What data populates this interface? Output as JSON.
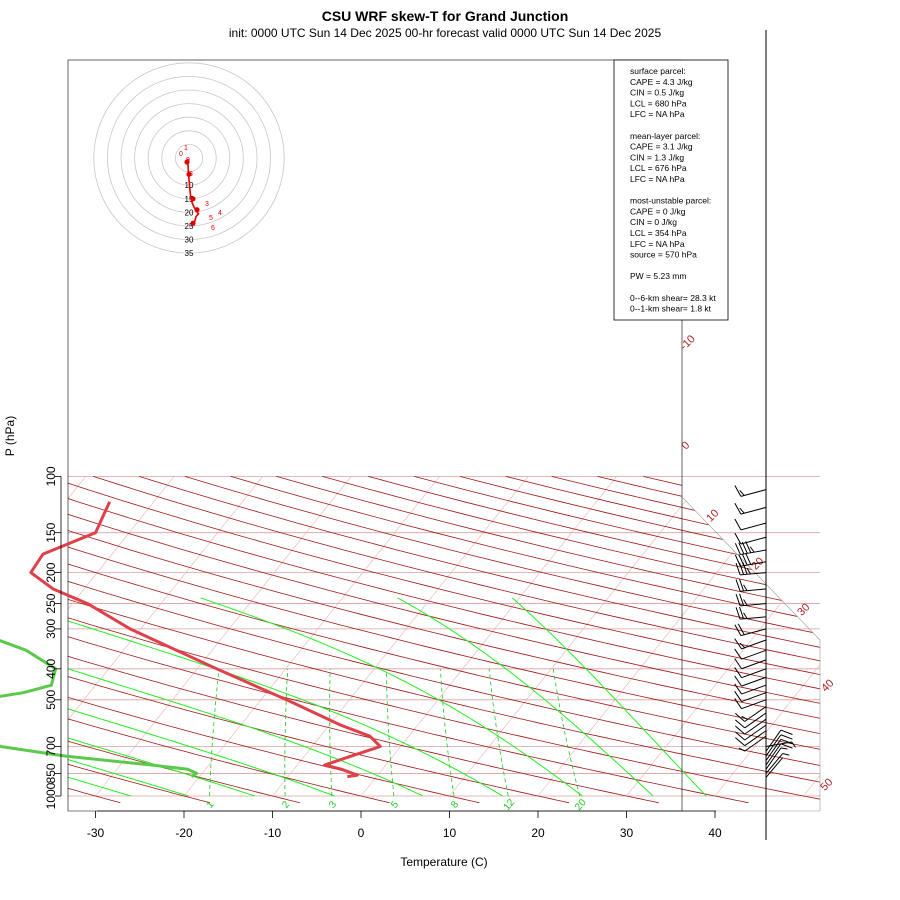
{
  "title": "CSU WRF skew-T for Grand Junction",
  "subtitle": "init: 0000 UTC Sun 14 Dec 2025    00-hr forecast valid 0000 UTC Sun 14 Dec 2025",
  "colors": {
    "temperature": "#e0404a",
    "dewpoint": "#5cc94c",
    "isotherm": "#b22222",
    "isobar": "#d9a0a0",
    "dry_adiabat": "#a01818",
    "moist_adiabat": "#22ee22",
    "mixing_ratio": "#22c522",
    "hodograph": "#e00000"
  },
  "info_box": [
    "surface parcel:",
    "CAPE = 4.3 J/kg",
    "CIN = 0.5 J/kg",
    "LCL = 680 hPa",
    "LFC = NA hPa",
    "",
    "mean-layer parcel:",
    "CAPE = 3.1 J/kg",
    "CIN = 1.3 J/kg",
    "LCL = 676 hPa",
    "LFC = NA hPa",
    "",
    "most-unstable parcel:",
    "CAPE = 0 J/kg",
    "CIN = 0 J/kg",
    "LCL = 354 hPa",
    "LFC = NA hPa",
    "source = 570 hPa",
    "",
    "PW =  5.23 mm",
    "",
    "0--6-km shear= 28.3 kt",
    "0--1-km shear= 1.8 kt"
  ],
  "chart_data": {
    "type": "line",
    "title": "CSU WRF skew-T for Grand Junction",
    "xlabel": "Temperature (C)",
    "ylabel": "P (hPa)",
    "x_ticks": [
      -30,
      -20,
      -10,
      0,
      10,
      20,
      30,
      40
    ],
    "y_ticks": [
      100,
      150,
      200,
      250,
      300,
      400,
      500,
      700,
      850,
      1000
    ],
    "y_scale": "log",
    "isotherm_labels": [
      -10,
      0,
      10,
      20,
      30,
      40,
      50
    ],
    "mixing_ratio_labels": [
      "1",
      "2",
      "3",
      "5",
      "8",
      "12",
      "20"
    ],
    "series": [
      {
        "name": "temperature",
        "points": [
          [
            120,
            -55.0
          ],
          [
            150,
            -53.8
          ],
          [
            175,
            -57.8
          ],
          [
            200,
            -57.5
          ],
          [
            225,
            -53.5
          ],
          [
            250,
            -48.3
          ],
          [
            300,
            -41.2
          ],
          [
            400,
            -27.8
          ],
          [
            500,
            -17.1
          ],
          [
            600,
            -8.7
          ],
          [
            650,
            -4.4
          ],
          [
            700,
            -2.3
          ],
          [
            750,
            -4.7
          ],
          [
            800,
            -6.9
          ],
          [
            825,
            -4.6
          ],
          [
            850,
            -3.0
          ],
          [
            860,
            -2.3
          ],
          [
            870,
            -3.3
          ]
        ]
      },
      {
        "name": "dewpoint",
        "points": [
          [
            190,
            -71.5
          ],
          [
            250,
            -68.0
          ],
          [
            300,
            -59.5
          ],
          [
            350,
            -51.0
          ],
          [
            400,
            -46.0
          ],
          [
            450,
            -45.0
          ],
          [
            475,
            -47.5
          ],
          [
            500,
            -52.0
          ],
          [
            525,
            -62.0
          ],
          [
            550,
            -58.0
          ],
          [
            600,
            -52.0
          ],
          [
            650,
            -48.0
          ],
          [
            700,
            -45.2
          ],
          [
            750,
            -37.0
          ],
          [
            800,
            -26.5
          ],
          [
            825,
            -22.0
          ],
          [
            850,
            -20.6
          ],
          [
            870,
            -20.9
          ]
        ]
      }
    ],
    "hodograph": {
      "ring_labels": [
        "10",
        "15",
        "20",
        "25",
        "30",
        "35"
      ],
      "height_labels": [
        "0",
        "1",
        "3",
        "4",
        "5",
        "6",
        "8",
        "9"
      ],
      "points": [
        [
          0.3,
          -1.4
        ],
        [
          1.0,
          -1.3
        ],
        [
          1.5,
          -1.2
        ],
        [
          2.5,
          -1.0
        ],
        [
          3.5,
          -0.8
        ],
        [
          4.5,
          -0.7
        ],
        [
          5.5,
          -0.4
        ],
        [
          6.5,
          -0.3
        ],
        [
          8.0,
          0.0
        ],
        [
          9.0,
          0.3
        ],
        [
          10.5,
          0.6
        ],
        [
          12.0,
          1.0
        ],
        [
          13.5,
          1.5
        ],
        [
          15.0,
          2.2
        ],
        [
          16.5,
          3.2
        ],
        [
          18.0,
          5.0
        ],
        [
          19.5,
          7.5
        ],
        [
          20.5,
          9.5
        ],
        [
          21.5,
          7.0
        ],
        [
          23.0,
          6.0
        ],
        [
          24.0,
          4.5
        ]
      ]
    },
    "wind_barbs": [
      {
        "p": 110,
        "speed_kt": 55,
        "dir": 255
      },
      {
        "p": 125,
        "speed_kt": 55,
        "dir": 255
      },
      {
        "p": 140,
        "speed_kt": 50,
        "dir": 255
      },
      {
        "p": 155,
        "speed_kt": 50,
        "dir": 255
      },
      {
        "p": 170,
        "speed_kt": 45,
        "dir": 260
      },
      {
        "p": 185,
        "speed_kt": 40,
        "dir": 260
      },
      {
        "p": 200,
        "speed_kt": 35,
        "dir": 265
      },
      {
        "p": 225,
        "speed_kt": 25,
        "dir": 265
      },
      {
        "p": 250,
        "speed_kt": 25,
        "dir": 265
      },
      {
        "p": 275,
        "speed_kt": 25,
        "dir": 265
      },
      {
        "p": 300,
        "speed_kt": 20,
        "dir": 255
      },
      {
        "p": 325,
        "speed_kt": 15,
        "dir": 250
      },
      {
        "p": 350,
        "speed_kt": 10,
        "dir": 250
      },
      {
        "p": 375,
        "speed_kt": 10,
        "dir": 250
      },
      {
        "p": 400,
        "speed_kt": 10,
        "dir": 250
      },
      {
        "p": 425,
        "speed_kt": 10,
        "dir": 250
      },
      {
        "p": 450,
        "speed_kt": 10,
        "dir": 250
      },
      {
        "p": 475,
        "speed_kt": 10,
        "dir": 250
      },
      {
        "p": 500,
        "speed_kt": 10,
        "dir": 250
      },
      {
        "p": 525,
        "speed_kt": 15,
        "dir": 235
      },
      {
        "p": 550,
        "speed_kt": 10,
        "dir": 235
      },
      {
        "p": 575,
        "speed_kt": 10,
        "dir": 235
      },
      {
        "p": 600,
        "speed_kt": 10,
        "dir": 235
      },
      {
        "p": 625,
        "speed_kt": 10,
        "dir": 235
      },
      {
        "p": 650,
        "speed_kt": 5,
        "dir": 235
      },
      {
        "p": 700,
        "speed_kt": 5,
        "dir": 80
      },
      {
        "p": 725,
        "speed_kt": 10,
        "dir": 35
      },
      {
        "p": 750,
        "speed_kt": 10,
        "dir": 35
      },
      {
        "p": 775,
        "speed_kt": 10,
        "dir": 35
      },
      {
        "p": 800,
        "speed_kt": 10,
        "dir": 35
      },
      {
        "p": 825,
        "speed_kt": 5,
        "dir": 35
      },
      {
        "p": 850,
        "speed_kt": 5,
        "dir": 40
      },
      {
        "p": 875,
        "speed_kt": 2,
        "dir": 40
      }
    ]
  }
}
